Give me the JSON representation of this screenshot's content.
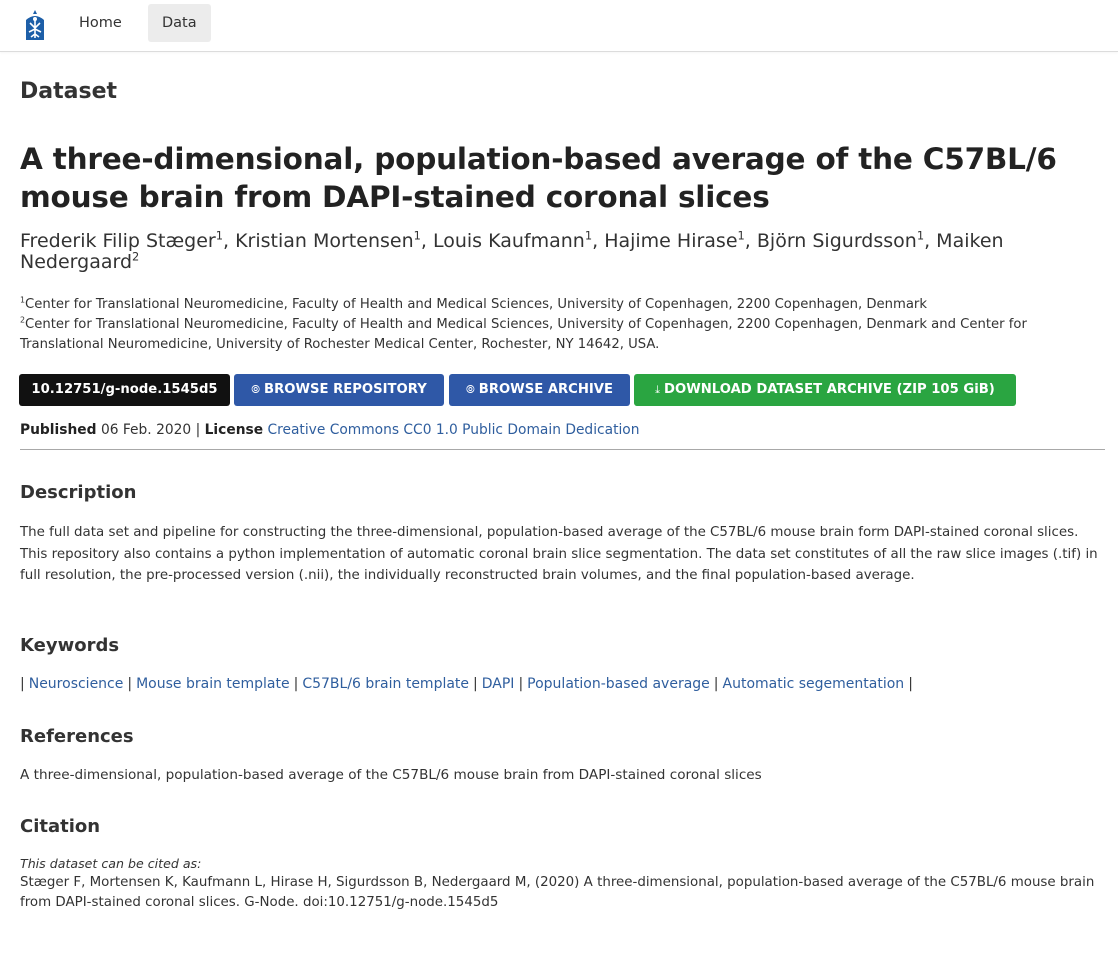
{
  "nav": {
    "home": "Home",
    "data": "Data"
  },
  "section_label": "Dataset",
  "title": "A three-dimensional, population-based average of the C57BL/6 mouse brain from DAPI-stained coronal slices",
  "authors": [
    {
      "name": "Frederik Filip Stæger",
      "aff": "1"
    },
    {
      "name": "Kristian Mortensen",
      "aff": "1"
    },
    {
      "name": "Louis Kaufmann",
      "aff": "1"
    },
    {
      "name": "Hajime Hirase",
      "aff": "1"
    },
    {
      "name": "Björn Sigurdsson",
      "aff": "1"
    },
    {
      "name": "Maiken Nedergaard",
      "aff": "2"
    }
  ],
  "affiliations": [
    {
      "num": "1",
      "text": "Center for Translational Neuromedicine, Faculty of Health and Medical Sciences, University of Copenhagen, 2200 Copenhagen, Denmark"
    },
    {
      "num": "2",
      "text": "Center for Translational Neuromedicine, Faculty of Health and Medical Sciences, University of Copenhagen, 2200 Copenhagen, Denmark and Center for Translational Neuromedicine, University of Rochester Medical Center, Rochester, NY 14642, USA."
    }
  ],
  "buttons": {
    "doi": "10.12751/g-node.1545d5",
    "browse_repo": "BROWSE REPOSITORY",
    "browse_archive": "BROWSE ARCHIVE",
    "download": "DOWNLOAD DATASET ARCHIVE (ZIP 105 GiB)"
  },
  "published": {
    "label": "Published",
    "date": "06 Feb. 2020",
    "sep": "|",
    "license_label": "License",
    "license": "Creative Commons CC0 1.0 Public Domain Dedication"
  },
  "description": {
    "heading": "Description",
    "text": "The full data set and pipeline for constructing the three-dimensional, population-based average of the C57BL/6 mouse brain form DAPI-stained coronal slices. This repository also contains a python implementation of automatic coronal brain slice segmentation. The data set constitutes of all the raw slice images (.tif) in full resolution, the pre-processed version (.nii), the individually reconstructed brain volumes, and the final population-based average."
  },
  "keywords": {
    "heading": "Keywords",
    "items": [
      "Neuroscience",
      "Mouse brain template",
      "C57BL/6 brain template",
      "DAPI",
      "Population-based average",
      "Automatic segementation"
    ]
  },
  "references": {
    "heading": "References",
    "text": "A three-dimensional, population-based average of the C57BL/6 mouse brain from DAPI-stained coronal slices"
  },
  "citation": {
    "heading": "Citation",
    "intro": "This dataset can be cited as:",
    "text": "Stæger F, Mortensen K, Kaufmann L, Hirase H, Sigurdsson B, Nedergaard M, (2020) A three-dimensional, population-based average of the C57BL/6 mouse brain from DAPI-stained coronal slices. G-Node. doi:10.12751/g-node.1545d5"
  },
  "colors": {
    "primary_button": "#2f58a7",
    "download_button": "#2aa541",
    "doi_button": "#111111",
    "link": "#2f5e9e"
  },
  "icons": {
    "logo": "gin-logo-icon",
    "link": "link-icon",
    "download": "download-icon"
  }
}
